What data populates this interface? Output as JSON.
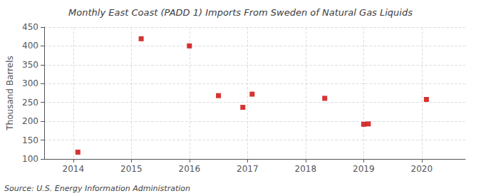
{
  "chart_data": {
    "type": "scatter",
    "title": "Monthly East Coast (PADD 1) Imports From Sweden of Natural Gas Liquids",
    "ylabel": "Thousand Barrels",
    "source": "Source: U.S. Energy Information Administration",
    "x": [
      2014.08,
      2015.17,
      2016.0,
      2016.5,
      2016.92,
      2017.08,
      2018.33,
      2019.0,
      2019.08,
      2020.08
    ],
    "values": [
      118,
      419,
      400,
      268,
      237,
      272,
      261,
      192,
      193,
      258
    ],
    "color": "#cc0000",
    "marker": "square",
    "xlim": [
      2013.5,
      2020.75
    ],
    "xticks": [
      2014,
      2015,
      2016,
      2017,
      2018,
      2019,
      2020
    ],
    "ylim": [
      100,
      450
    ],
    "yticks": [
      100,
      150,
      200,
      250,
      300,
      350,
      400,
      450
    ],
    "grid": true
  }
}
